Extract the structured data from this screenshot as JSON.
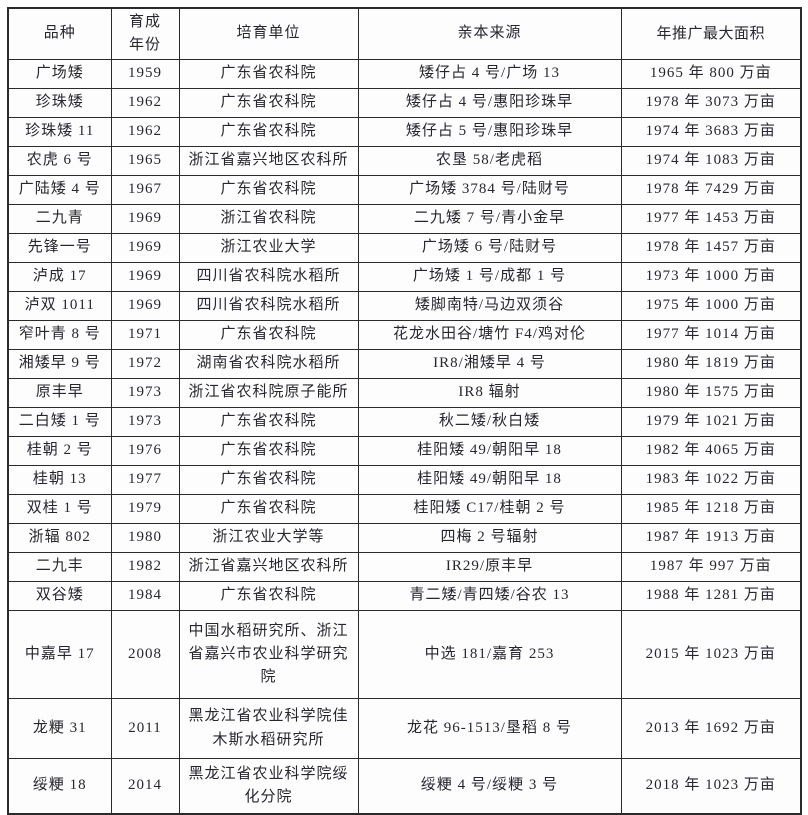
{
  "table": {
    "headers": [
      "品种",
      "育成\n年份",
      "培育单位",
      "亲本来源",
      "年推广最大面积"
    ],
    "rows": [
      [
        "广场矮",
        "1959",
        "广东省农科院",
        "矮仔占 4 号/广场 13",
        "1965 年 800 万亩"
      ],
      [
        "珍珠矮",
        "1962",
        "广东省农科院",
        "矮仔占 4 号/惠阳珍珠早",
        "1978 年 3073 万亩"
      ],
      [
        "珍珠矮 11",
        "1962",
        "广东省农科院",
        "矮仔占 5 号/惠阳珍珠早",
        "1974 年 3683 万亩"
      ],
      [
        "农虎 6 号",
        "1965",
        "浙江省嘉兴地区农科所",
        "农垦 58/老虎稻",
        "1974 年 1083 万亩"
      ],
      [
        "广陆矮 4 号",
        "1967",
        "广东省农科院",
        "广场矮 3784 号/陆财号",
        "1978 年 7429 万亩"
      ],
      [
        "二九青",
        "1969",
        "浙江省农科院",
        "二九矮 7 号/青小金早",
        "1977 年 1453 万亩"
      ],
      [
        "先锋一号",
        "1969",
        "浙江农业大学",
        "广场矮 6 号/陆财号",
        "1978 年 1457 万亩"
      ],
      [
        "泸成 17",
        "1969",
        "四川省农科院水稻所",
        "广场矮 1 号/成都 1 号",
        "1973 年 1000 万亩"
      ],
      [
        "泸双 1011",
        "1969",
        "四川省农科院水稻所",
        "矮脚南特/马边双须谷",
        "1975 年 1000 万亩"
      ],
      [
        "窄叶青 8 号",
        "1971",
        "广东省农科院",
        "花龙水田谷/塘竹 F4/鸡对伦",
        "1977 年 1014 万亩"
      ],
      [
        "湘矮早 9 号",
        "1972",
        "湖南省农科院水稻所",
        "IR8/湘矮早 4 号",
        "1980 年 1819 万亩"
      ],
      [
        "原丰早",
        "1973",
        "浙江省农科院原子能所",
        "IR8 辐射",
        "1980 年 1575 万亩"
      ],
      [
        "二白矮 1 号",
        "1973",
        "广东省农科院",
        "秋二矮/秋白矮",
        "1979 年 1021 万亩"
      ],
      [
        "桂朝 2 号",
        "1976",
        "广东省农科院",
        "桂阳矮 49/朝阳早 18",
        "1982 年 4065 万亩"
      ],
      [
        "桂朝 13",
        "1977",
        "广东省农科院",
        "桂阳矮 49/朝阳早 18",
        "1983 年 1022 万亩"
      ],
      [
        "双桂 1 号",
        "1979",
        "广东省农科院",
        "桂阳矮 C17/桂朝 2 号",
        "1985 年 1218 万亩"
      ],
      [
        "浙辐 802",
        "1980",
        "浙江农业大学等",
        "四梅 2 号辐射",
        "1987 年 1913 万亩"
      ],
      [
        "二九丰",
        "1982",
        "浙江省嘉兴地区农科所",
        "IR29/原丰早",
        "1987 年 997 万亩"
      ],
      [
        "双谷矮",
        "1984",
        "广东省农科院",
        "青二矮/青四矮/谷农 13",
        "1988 年 1281 万亩"
      ],
      [
        "中嘉早 17",
        "2008",
        "中国水稻研究所、浙江省嘉兴市农业科学研究院",
        "中选 181/嘉育 253",
        "2015 年 1023 万亩"
      ],
      [
        "龙粳 31",
        "2011",
        "黑龙江省农业科学院佳木斯水稻研究所",
        "龙花 96-1513/垦稻 8 号",
        "2013 年 1692 万亩"
      ],
      [
        "绥粳 18",
        "2014",
        "黑龙江省农业科学院绥化分院",
        "绥粳 4 号/绥粳 3 号",
        "2018 年 1023 万亩"
      ]
    ]
  }
}
